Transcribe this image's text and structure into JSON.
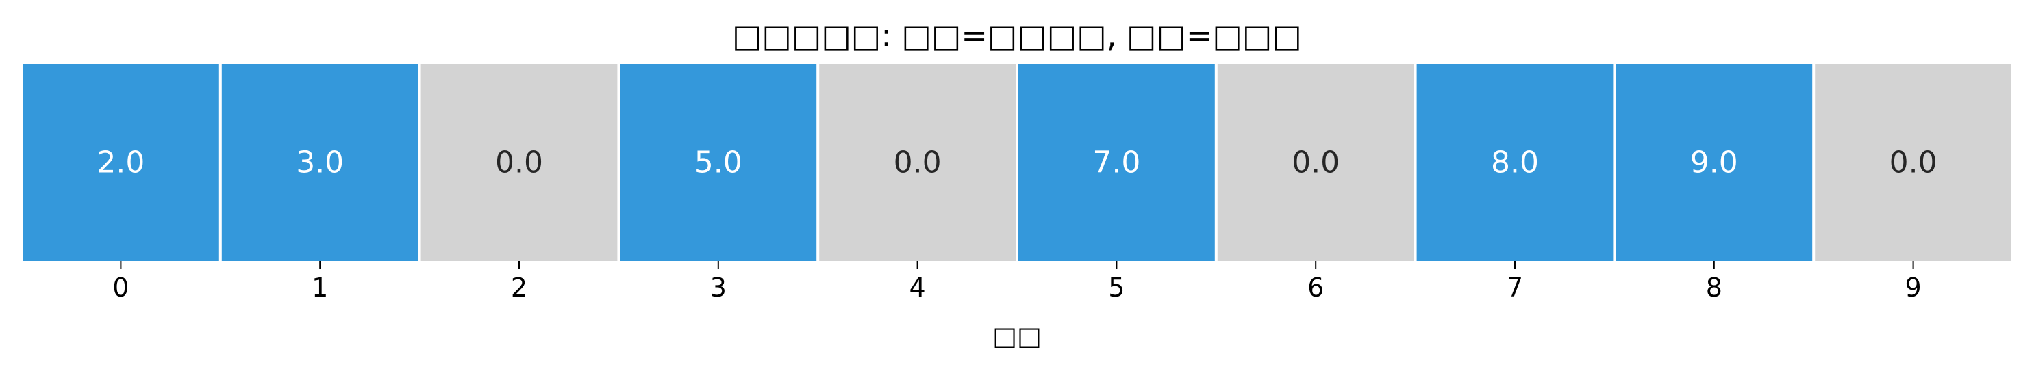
{
  "chart_data": {
    "type": "heatmap",
    "title": "□□□□□: □□=□□□□, □□=□□□",
    "xlabel": "□□",
    "categories": [
      "0",
      "1",
      "2",
      "3",
      "4",
      "5",
      "6",
      "7",
      "8",
      "9"
    ],
    "values": [
      2.0,
      3.0,
      0.0,
      5.0,
      0.0,
      7.0,
      0.0,
      8.0,
      9.0,
      0.0
    ],
    "value_labels": [
      "2.0",
      "3.0",
      "0.0",
      "5.0",
      "0.0",
      "7.0",
      "0.0",
      "8.0",
      "9.0",
      "0.0"
    ],
    "colors": {
      "filled": "#3498db",
      "empty": "#d3d3d3",
      "filled_text": "#ffffff",
      "empty_text": "#262626"
    }
  }
}
